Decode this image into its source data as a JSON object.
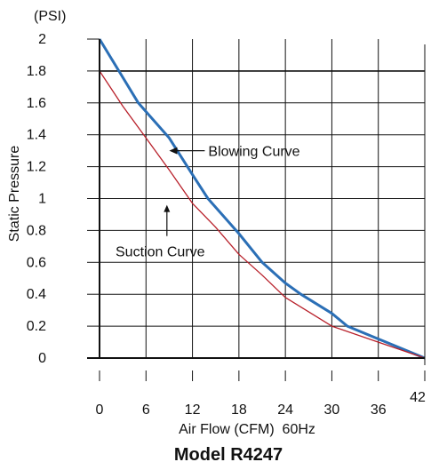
{
  "chart_data": {
    "type": "line",
    "title": "Model R4247",
    "xlabel": "Air Flow (CFM)  60Hz",
    "ylabel": "Static Pressure",
    "yunit": "(PSI)",
    "xlim": [
      0,
      42
    ],
    "ylim": [
      0,
      2
    ],
    "x_ticks": [
      0,
      6,
      12,
      18,
      24,
      30,
      36,
      42
    ],
    "y_ticks": [
      0,
      0.2,
      0.4,
      0.6,
      0.8,
      1,
      1.2,
      1.4,
      1.6,
      1.8,
      2
    ],
    "x_tick_labels": [
      "0",
      "6",
      "12",
      "18",
      "24",
      "30",
      "36",
      "42"
    ],
    "y_tick_labels": [
      "0",
      "0.2",
      "0.4",
      "0.6",
      "0.8",
      "1",
      "1.2",
      "1.4",
      "1.6",
      "1.8",
      "2"
    ],
    "grid": true,
    "series": [
      {
        "name": "Blowing Curve",
        "color": "#2b6fb6",
        "points": [
          [
            0,
            2.0
          ],
          [
            2.5,
            1.8
          ],
          [
            5,
            1.6
          ],
          [
            9,
            1.38
          ],
          [
            12,
            1.15
          ],
          [
            14,
            1.0
          ],
          [
            18,
            0.78
          ],
          [
            21,
            0.6
          ],
          [
            24,
            0.47
          ],
          [
            26,
            0.4
          ],
          [
            30,
            0.28
          ],
          [
            32,
            0.2
          ],
          [
            36,
            0.12
          ],
          [
            42,
            0.0
          ]
        ]
      },
      {
        "name": "Suction Curve",
        "color": "#b8202a",
        "points": [
          [
            0,
            1.8
          ],
          [
            3,
            1.58
          ],
          [
            6,
            1.38
          ],
          [
            9,
            1.18
          ],
          [
            12,
            0.97
          ],
          [
            15,
            0.82
          ],
          [
            18,
            0.65
          ],
          [
            21,
            0.52
          ],
          [
            24,
            0.38
          ],
          [
            27,
            0.29
          ],
          [
            30,
            0.2
          ],
          [
            36,
            0.1
          ],
          [
            42,
            0.0
          ]
        ]
      }
    ],
    "annotations": [
      {
        "text": "Blowing Curve",
        "series": "Blowing Curve",
        "point": [
          9,
          1.3
        ],
        "arrow": "left"
      },
      {
        "text": "Suction Curve",
        "series": "Suction Curve",
        "point": [
          8.7,
          0.96
        ],
        "arrow": "up"
      }
    ]
  }
}
